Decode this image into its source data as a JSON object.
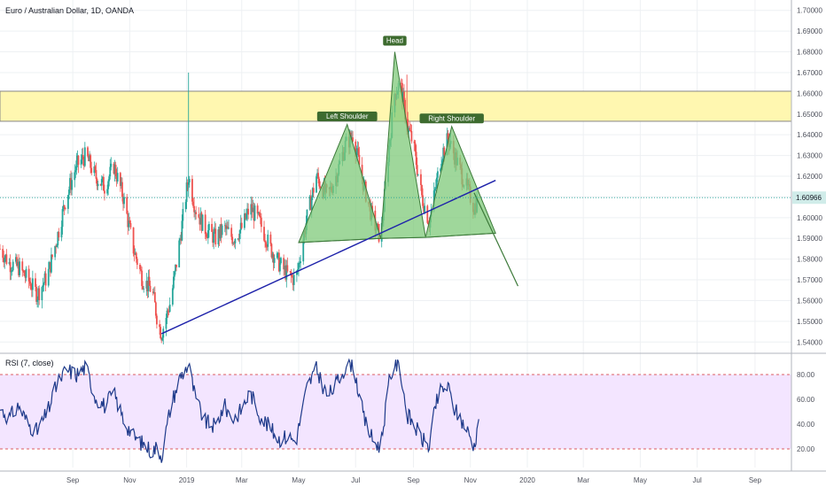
{
  "chart_data": {
    "type": "line",
    "title": "Euro / Australian Dollar, 1D, OANDA",
    "last_price": "1.60966",
    "price_axis": {
      "min": 1.535,
      "max": 1.705,
      "ticks": [
        "1.54000",
        "1.55000",
        "1.56000",
        "1.57000",
        "1.58000",
        "1.59000",
        "1.60000",
        "1.61000",
        "1.62000",
        "1.63000",
        "1.64000",
        "1.65000",
        "1.66000",
        "1.67000",
        "1.68000",
        "1.69000",
        "1.70000"
      ]
    },
    "time_axis": {
      "start": "2018-06-15",
      "end": "2020-10-10",
      "labels": [
        {
          "label": "Sep",
          "date": "2018-09-01"
        },
        {
          "label": "Nov",
          "date": "2018-11-01"
        },
        {
          "label": "2019",
          "date": "2019-01-01"
        },
        {
          "label": "Mar",
          "date": "2019-03-01"
        },
        {
          "label": "May",
          "date": "2019-05-01"
        },
        {
          "label": "Jul",
          "date": "2019-07-01"
        },
        {
          "label": "Sep",
          "date": "2019-09-01"
        },
        {
          "label": "Nov",
          "date": "2019-11-01"
        },
        {
          "label": "2020",
          "date": "2020-01-01"
        },
        {
          "label": "Mar",
          "date": "2020-03-01"
        },
        {
          "label": "May",
          "date": "2020-05-01"
        },
        {
          "label": "Jul",
          "date": "2020-07-01"
        },
        {
          "label": "Sep",
          "date": "2020-09-01"
        }
      ]
    },
    "price_series": [
      {
        "date": "2018-06-15",
        "value": 1.585
      },
      {
        "date": "2018-06-25",
        "value": 1.578
      },
      {
        "date": "2018-07-05",
        "value": 1.576
      },
      {
        "date": "2018-07-15",
        "value": 1.57
      },
      {
        "date": "2018-07-25",
        "value": 1.563
      },
      {
        "date": "2018-08-05",
        "value": 1.572
      },
      {
        "date": "2018-08-15",
        "value": 1.59
      },
      {
        "date": "2018-08-25",
        "value": 1.61
      },
      {
        "date": "2018-09-05",
        "value": 1.625
      },
      {
        "date": "2018-09-15",
        "value": 1.63
      },
      {
        "date": "2018-09-25",
        "value": 1.62
      },
      {
        "date": "2018-10-05",
        "value": 1.615
      },
      {
        "date": "2018-10-15",
        "value": 1.625
      },
      {
        "date": "2018-10-25",
        "value": 1.61
      },
      {
        "date": "2018-11-05",
        "value": 1.585
      },
      {
        "date": "2018-11-15",
        "value": 1.57
      },
      {
        "date": "2018-11-25",
        "value": 1.565
      },
      {
        "date": "2018-12-01",
        "value": 1.55
      },
      {
        "date": "2018-12-05",
        "value": 1.544
      },
      {
        "date": "2018-12-15",
        "value": 1.56
      },
      {
        "date": "2018-12-25",
        "value": 1.59
      },
      {
        "date": "2019-01-03",
        "value": 1.62
      },
      {
        "date": "2019-01-10",
        "value": 1.605
      },
      {
        "date": "2019-01-20",
        "value": 1.595
      },
      {
        "date": "2019-02-01",
        "value": 1.59
      },
      {
        "date": "2019-02-10",
        "value": 1.595
      },
      {
        "date": "2019-02-20",
        "value": 1.59
      },
      {
        "date": "2019-03-01",
        "value": 1.595
      },
      {
        "date": "2019-03-10",
        "value": 1.605
      },
      {
        "date": "2019-03-20",
        "value": 1.598
      },
      {
        "date": "2019-04-01",
        "value": 1.585
      },
      {
        "date": "2019-04-10",
        "value": 1.578
      },
      {
        "date": "2019-04-20",
        "value": 1.572
      },
      {
        "date": "2019-04-28",
        "value": 1.57
      },
      {
        "date": "2019-05-10",
        "value": 1.6
      },
      {
        "date": "2019-05-20",
        "value": 1.62
      },
      {
        "date": "2019-06-01",
        "value": 1.61
      },
      {
        "date": "2019-06-10",
        "value": 1.62
      },
      {
        "date": "2019-06-20",
        "value": 1.635
      },
      {
        "date": "2019-06-28",
        "value": 1.64
      },
      {
        "date": "2019-07-10",
        "value": 1.615
      },
      {
        "date": "2019-07-20",
        "value": 1.598
      },
      {
        "date": "2019-07-28",
        "value": 1.59
      },
      {
        "date": "2019-08-05",
        "value": 1.63
      },
      {
        "date": "2019-08-12",
        "value": 1.66
      },
      {
        "date": "2019-08-18",
        "value": 1.665
      },
      {
        "date": "2019-08-25",
        "value": 1.645
      },
      {
        "date": "2019-09-01",
        "value": 1.635
      },
      {
        "date": "2019-09-10",
        "value": 1.61
      },
      {
        "date": "2019-09-18",
        "value": 1.598
      },
      {
        "date": "2019-09-25",
        "value": 1.615
      },
      {
        "date": "2019-10-01",
        "value": 1.63
      },
      {
        "date": "2019-10-08",
        "value": 1.638
      },
      {
        "date": "2019-10-15",
        "value": 1.63
      },
      {
        "date": "2019-10-25",
        "value": 1.618
      },
      {
        "date": "2019-11-01",
        "value": 1.61
      },
      {
        "date": "2019-11-05",
        "value": 1.605
      },
      {
        "date": "2019-11-10",
        "value": 1.6097
      }
    ],
    "rsi": {
      "label": "RSI (7, close)",
      "ticks": [
        "20.00",
        "40.00",
        "60.00",
        "80.00"
      ],
      "upper_band": 80,
      "lower_band": 20,
      "min": 5,
      "max": 95,
      "values": [
        {
          "date": "2018-06-15",
          "value": 52
        },
        {
          "date": "2018-06-25",
          "value": 45
        },
        {
          "date": "2018-07-05",
          "value": 55
        },
        {
          "date": "2018-07-15",
          "value": 40
        },
        {
          "date": "2018-07-25",
          "value": 34
        },
        {
          "date": "2018-08-05",
          "value": 50
        },
        {
          "date": "2018-08-15",
          "value": 72
        },
        {
          "date": "2018-08-25",
          "value": 84
        },
        {
          "date": "2018-09-05",
          "value": 80
        },
        {
          "date": "2018-09-15",
          "value": 86
        },
        {
          "date": "2018-09-25",
          "value": 62
        },
        {
          "date": "2018-10-05",
          "value": 55
        },
        {
          "date": "2018-10-15",
          "value": 65
        },
        {
          "date": "2018-10-25",
          "value": 44
        },
        {
          "date": "2018-11-05",
          "value": 30
        },
        {
          "date": "2018-11-15",
          "value": 24
        },
        {
          "date": "2018-11-25",
          "value": 18
        },
        {
          "date": "2018-12-01",
          "value": 22
        },
        {
          "date": "2018-12-05",
          "value": 14
        },
        {
          "date": "2018-12-15",
          "value": 55
        },
        {
          "date": "2018-12-25",
          "value": 78
        },
        {
          "date": "2019-01-03",
          "value": 88
        },
        {
          "date": "2019-01-10",
          "value": 62
        },
        {
          "date": "2019-01-20",
          "value": 42
        },
        {
          "date": "2019-02-01",
          "value": 38
        },
        {
          "date": "2019-02-10",
          "value": 55
        },
        {
          "date": "2019-02-20",
          "value": 44
        },
        {
          "date": "2019-03-01",
          "value": 52
        },
        {
          "date": "2019-03-10",
          "value": 66
        },
        {
          "date": "2019-03-20",
          "value": 48
        },
        {
          "date": "2019-04-01",
          "value": 36
        },
        {
          "date": "2019-04-10",
          "value": 28
        },
        {
          "date": "2019-04-20",
          "value": 30
        },
        {
          "date": "2019-04-28",
          "value": 26
        },
        {
          "date": "2019-05-10",
          "value": 70
        },
        {
          "date": "2019-05-20",
          "value": 84
        },
        {
          "date": "2019-06-01",
          "value": 62
        },
        {
          "date": "2019-06-10",
          "value": 72
        },
        {
          "date": "2019-06-20",
          "value": 86
        },
        {
          "date": "2019-06-28",
          "value": 90
        },
        {
          "date": "2019-07-10",
          "value": 44
        },
        {
          "date": "2019-07-20",
          "value": 26
        },
        {
          "date": "2019-07-28",
          "value": 22
        },
        {
          "date": "2019-08-05",
          "value": 70
        },
        {
          "date": "2019-08-12",
          "value": 90
        },
        {
          "date": "2019-08-18",
          "value": 84
        },
        {
          "date": "2019-08-25",
          "value": 48
        },
        {
          "date": "2019-09-01",
          "value": 40
        },
        {
          "date": "2019-09-10",
          "value": 28
        },
        {
          "date": "2019-09-18",
          "value": 22
        },
        {
          "date": "2019-09-25",
          "value": 56
        },
        {
          "date": "2019-10-01",
          "value": 68
        },
        {
          "date": "2019-10-08",
          "value": 70
        },
        {
          "date": "2019-10-15",
          "value": 52
        },
        {
          "date": "2019-10-25",
          "value": 40
        },
        {
          "date": "2019-11-01",
          "value": 30
        },
        {
          "date": "2019-11-05",
          "value": 22
        },
        {
          "date": "2019-11-10",
          "value": 44
        }
      ]
    },
    "resistance_zone": {
      "low": 1.6465,
      "high": 1.661
    },
    "trendline": {
      "points": [
        {
          "date": "2018-12-05",
          "value": 1.544
        },
        {
          "date": "2019-11-28",
          "value": 1.618
        }
      ]
    },
    "pattern": {
      "left_shoulder": [
        {
          "date": "2019-05-01",
          "value": 1.588
        },
        {
          "date": "2019-06-22",
          "value": 1.645
        },
        {
          "date": "2019-07-28",
          "value": 1.59
        }
      ],
      "head": [
        {
          "date": "2019-07-28",
          "value": 1.59
        },
        {
          "date": "2019-08-12",
          "value": 1.68
        },
        {
          "date": "2019-09-14",
          "value": 1.5905
        }
      ],
      "right_shoulder": [
        {
          "date": "2019-09-14",
          "value": 1.5905
        },
        {
          "date": "2019-10-12",
          "value": 1.644
        },
        {
          "date": "2019-11-28",
          "value": 1.5925
        }
      ],
      "projection": [
        {
          "date": "2019-11-05",
          "value": 1.612
        },
        {
          "date": "2019-12-22",
          "value": 1.567
        }
      ]
    },
    "annotations": [
      {
        "label": "Left Shoulder",
        "date": "2019-06-22",
        "value": 1.6465
      },
      {
        "label": "Head",
        "date": "2019-08-12",
        "value": 1.683
      },
      {
        "label": "Right Shoulder",
        "date": "2019-10-12",
        "value": 1.6455
      }
    ],
    "colors": {
      "up": "#26a69a",
      "down": "#ef5350",
      "trendline": "#1e22aa",
      "pattern_fill": "#7fc97a",
      "pattern_stroke": "#3d7a3a",
      "annotation_bg": "#3d6b2f",
      "zone_fill": "#fff7b0",
      "zone_border": "#888888",
      "rsi_line": "#1e3a8a",
      "rsi_band": "#f3e5ff",
      "rsi_dash": "#d32f2f"
    },
    "grid": true
  }
}
